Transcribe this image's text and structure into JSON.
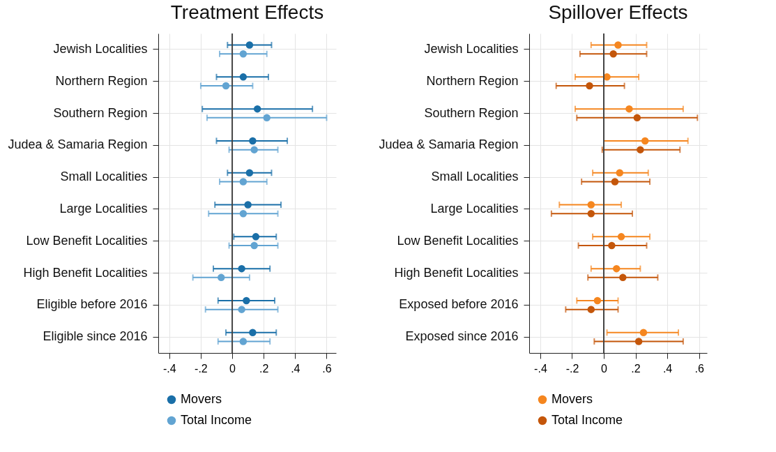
{
  "chart_data": [
    {
      "type": "scatter",
      "title": "Treatment Effects",
      "orientation": "horizontal",
      "marker": "circle",
      "grid": true,
      "legend": "bottom",
      "categories": [
        "Jewish Localities",
        "Northern Region",
        "Southern Region",
        "Judea & Samaria Region",
        "Small Localities",
        "Large Localities",
        "Low Benefit Localities",
        "High Benefit Localities",
        "Eligible before 2016",
        "Eligible since 2016"
      ],
      "xlim": [
        -0.47,
        0.66
      ],
      "xticks": [
        {
          "value": -0.4,
          "label": "-.4"
        },
        {
          "value": -0.2,
          "label": "-.2"
        },
        0,
        {
          "value": 0.2,
          "label": ".2"
        },
        {
          "value": 0.4,
          "label": ".4"
        },
        {
          "value": 0.6,
          "label": ".6"
        }
      ],
      "ref_lines": [
        {
          "axis": "x",
          "value": 0,
          "color": "#444444"
        }
      ],
      "series": [
        {
          "name": "Movers",
          "color": "#1a6fa8",
          "values": [
            0.11,
            0.07,
            0.16,
            0.13,
            0.11,
            0.1,
            0.15,
            0.06,
            0.09,
            0.13
          ],
          "errors": [
            [
              -0.03,
              0.25
            ],
            [
              -0.1,
              0.23
            ],
            [
              -0.19,
              0.51
            ],
            [
              -0.1,
              0.35
            ],
            [
              -0.03,
              0.25
            ],
            [
              -0.11,
              0.31
            ],
            [
              0.01,
              0.28
            ],
            [
              -0.12,
              0.24
            ],
            [
              -0.09,
              0.27
            ],
            [
              -0.04,
              0.28
            ]
          ]
        },
        {
          "name": "Total Income",
          "color": "#62a4d2",
          "values": [
            0.07,
            -0.04,
            0.22,
            0.14,
            0.07,
            0.07,
            0.14,
            -0.07,
            0.06,
            0.07
          ],
          "errors": [
            [
              -0.08,
              0.22
            ],
            [
              -0.2,
              0.13
            ],
            [
              -0.16,
              0.6
            ],
            [
              -0.02,
              0.29
            ],
            [
              -0.08,
              0.22
            ],
            [
              -0.15,
              0.29
            ],
            [
              -0.02,
              0.29
            ],
            [
              -0.25,
              0.11
            ],
            [
              -0.17,
              0.29
            ],
            [
              -0.09,
              0.24
            ]
          ]
        }
      ]
    },
    {
      "type": "scatter",
      "title": "Spillover Effects",
      "orientation": "horizontal",
      "marker": "circle",
      "grid": true,
      "legend": "bottom",
      "categories": [
        "Jewish Localities",
        "Northern Region",
        "Southern Region",
        "Judea & Samaria Region",
        "Small Localities",
        "Large Localities",
        "Low Benefit Localities",
        "High Benefit Localities",
        "Exposed before 2016",
        "Exposed since 2016"
      ],
      "xlim": [
        -0.47,
        0.65
      ],
      "xticks": [
        {
          "value": -0.4,
          "label": "-.4"
        },
        {
          "value": -0.2,
          "label": "-.2"
        },
        0,
        {
          "value": 0.2,
          "label": ".2"
        },
        {
          "value": 0.4,
          "label": ".4"
        },
        {
          "value": 0.6,
          "label": ".6"
        }
      ],
      "ref_lines": [
        {
          "axis": "x",
          "value": 0,
          "color": "#444444"
        }
      ],
      "series": [
        {
          "name": "Movers",
          "color": "#f5861f",
          "values": [
            0.09,
            0.02,
            0.16,
            0.26,
            0.1,
            -0.08,
            0.11,
            0.08,
            -0.04,
            0.25
          ],
          "errors": [
            [
              -0.08,
              0.27
            ],
            [
              -0.18,
              0.22
            ],
            [
              -0.18,
              0.5
            ],
            [
              0.0,
              0.53
            ],
            [
              -0.07,
              0.28
            ],
            [
              -0.28,
              0.11
            ],
            [
              -0.07,
              0.29
            ],
            [
              -0.08,
              0.23
            ],
            [
              -0.17,
              0.09
            ],
            [
              0.02,
              0.47
            ]
          ]
        },
        {
          "name": "Total Income",
          "color": "#c4560a",
          "values": [
            0.06,
            -0.09,
            0.21,
            0.23,
            0.07,
            -0.08,
            0.05,
            0.12,
            -0.08,
            0.22
          ],
          "errors": [
            [
              -0.15,
              0.27
            ],
            [
              -0.3,
              0.13
            ],
            [
              -0.17,
              0.59
            ],
            [
              -0.01,
              0.48
            ],
            [
              -0.14,
              0.29
            ],
            [
              -0.33,
              0.18
            ],
            [
              -0.16,
              0.27
            ],
            [
              -0.1,
              0.34
            ],
            [
              -0.24,
              0.09
            ],
            [
              -0.06,
              0.5
            ]
          ]
        }
      ]
    }
  ]
}
